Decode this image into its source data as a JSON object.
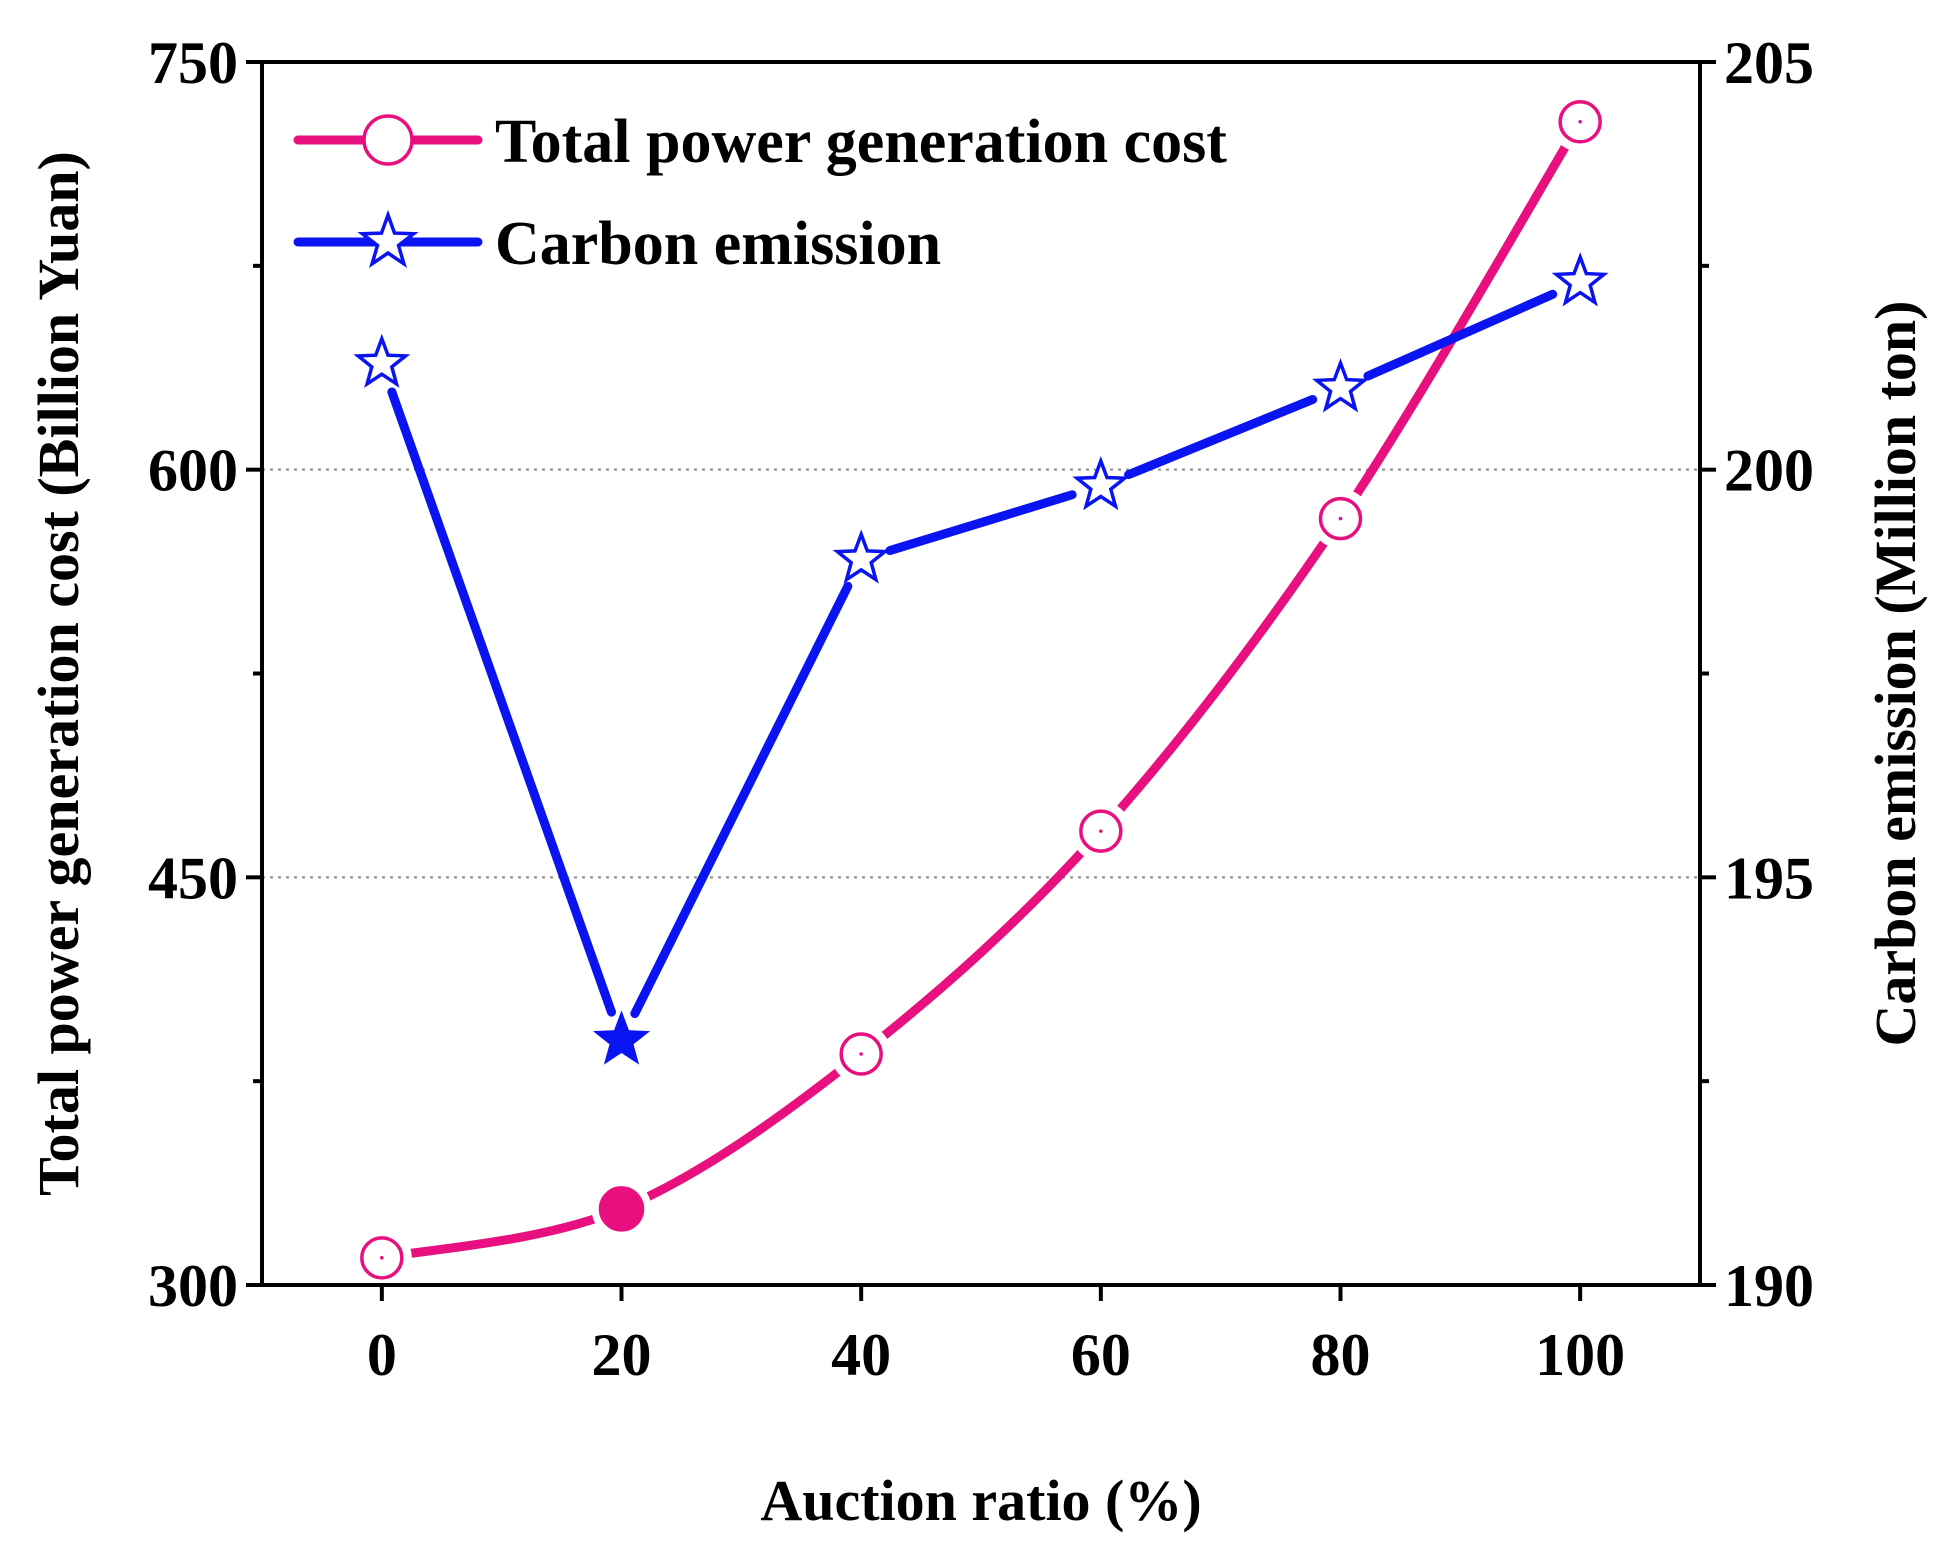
{
  "chart_data": {
    "type": "line",
    "title": "",
    "xlabel": "Auction ratio (%)",
    "ylabel_left": "Total power generation cost (Billion Yuan)",
    "ylabel_right": "Carbon emission (Million ton)",
    "x": [
      0,
      20,
      40,
      60,
      80,
      100
    ],
    "x_ticks": [
      "0",
      "20",
      "40",
      "60",
      "80",
      "100"
    ],
    "xlim": [
      -10,
      110
    ],
    "ylim_left": [
      300,
      750
    ],
    "ylim_right": [
      190,
      205
    ],
    "y_ticks_left": [
      "300",
      "450",
      "600",
      "750"
    ],
    "y_ticks_right": [
      "190",
      "195",
      "200",
      "205"
    ],
    "grid": "horizontal dotted at major ticks",
    "legend_position": "top-left",
    "series": [
      {
        "name": "Total power generation cost",
        "axis": "left",
        "color": "#E8107E",
        "marker": "circle-open",
        "highlight_index": 1,
        "values": [
          310,
          328,
          385,
          467,
          582,
          728
        ]
      },
      {
        "name": "Carbon emission",
        "axis": "right",
        "color": "#0A14F0",
        "marker": "star-open",
        "highlight_index": 1,
        "values": [
          201.3,
          193.0,
          198.9,
          199.8,
          201.0,
          202.3
        ]
      }
    ]
  }
}
